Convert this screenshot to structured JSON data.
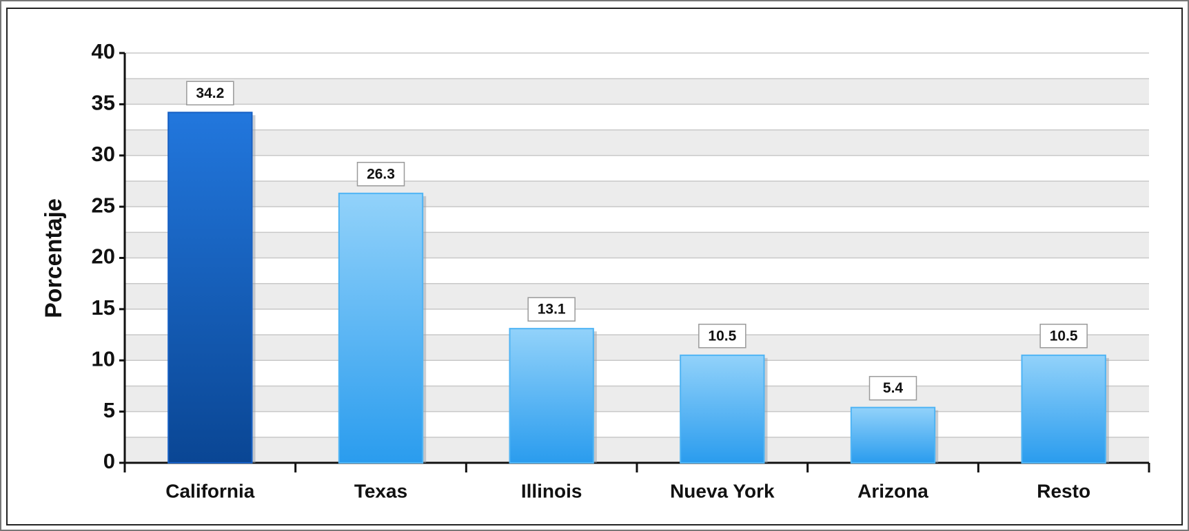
{
  "chart_data": {
    "type": "bar",
    "y_label": "Porcentaje",
    "categories": [
      "California",
      "Texas",
      "Illinois",
      "Nueva York",
      "Arizona",
      "Resto"
    ],
    "values": [
      34.2,
      26.3,
      13.1,
      10.5,
      5.4,
      10.5
    ],
    "colors": [
      "#1760c4",
      "#4fb4f4",
      "#4fb4f4",
      "#4fb4f4",
      "#4fb4f4",
      "#4fb4f4"
    ],
    "ylim": [
      0,
      40
    ],
    "yticks": [
      0,
      5,
      10,
      15,
      20,
      25,
      30,
      35,
      40
    ],
    "grid": true
  }
}
